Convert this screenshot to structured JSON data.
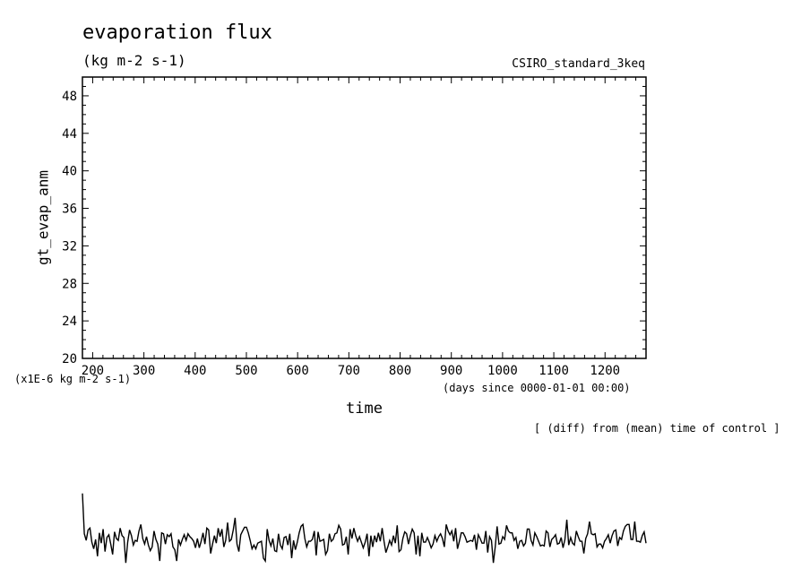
{
  "header": {
    "title": "evaporation flux",
    "units": "(kg m-2 s-1)",
    "dataset": "CSIRO_standard_3keq"
  },
  "footer": {
    "note": "[ (diff) from (mean) time of control ]"
  },
  "chart_data": {
    "type": "line",
    "xlabel": "time",
    "x_unit_label": "(days since 0000-01-01 00:00)",
    "ylabel": "gt_evap_anm",
    "y_scale_label": "(x1E-6 kg m-2 s-1)",
    "xlim": [
      180,
      1280
    ],
    "ylim": [
      20,
      50
    ],
    "x_ticks": [
      200,
      300,
      400,
      500,
      600,
      700,
      800,
      900,
      1000,
      1100,
      1200
    ],
    "y_ticks": [
      20,
      24,
      28,
      32,
      36,
      40,
      44,
      48
    ],
    "grid": false,
    "line_color": "#000000",
    "series": [
      {
        "values": [
          5.6,
          1.3,
          0.6,
          1.7,
          1.9,
          0.4,
          -0.3,
          0.7,
          -1.1,
          1.4,
          0.3,
          1.8,
          -0.6,
          0.9,
          1.2,
          0.2,
          -0.9,
          1.5,
          0.8,
          0.6,
          1.9,
          1.1,
          0.9,
          -1.8,
          0.4,
          1.7,
          1.1,
          0.1,
          0.6,
          0.5,
          1.6,
          2.3,
          0.8,
          0.2,
          1.0,
          0.1,
          -0.5,
          -0.1,
          1.6,
          0.7,
          0.2,
          -1.6,
          1.4,
          1.3,
          0.2,
          1.2,
          1.0,
          1.3,
          -0.1,
          -0.4,
          -1.6,
          0.7,
          0.1,
          0.7,
          1.2,
          0.6,
          1.3,
          1.0,
          0.8,
          0.5,
          -0.2,
          0.8,
          -0.2,
          0.5,
          1.4,
          0.2,
          1.9,
          1.7,
          -0.8,
          0.2,
          1.1,
          0.3,
          1.9,
          1.0,
          1.8,
          -0.1,
          0.6,
          2.5,
          0.5,
          0.7,
          1.7,
          3.0,
          0.2,
          -0.6,
          1.2,
          1.6,
          2.0,
          2.0,
          1.4,
          0.6,
          -0.3,
          0.1,
          -0.3,
          0.3,
          0.4,
          0.5,
          -1.3,
          -1.6,
          1.8,
          0.6,
          0.0,
          0.8,
          -0.5,
          -0.6,
          1.3,
          0.1,
          -0.3,
          0.9,
          1.0,
          0.1,
          1.3,
          -1.3,
          0.6,
          -0.4,
          0.4,
          1.4,
          2.1,
          2.3,
          0.8,
          -0.1,
          0.5,
          0.5,
          0.7,
          1.6,
          -1.0,
          1.5,
          0.5,
          0.6,
          0.7,
          -0.9,
          -0.5,
          1.3,
          0.5,
          0.7,
          1.3,
          1.4,
          2.2,
          1.8,
          0.1,
          0.2,
          1.0,
          -0.9,
          1.8,
          0.8,
          1.9,
          1.1,
          0.5,
          1.0,
          0.4,
          -0.2,
          0.4,
          1.3,
          -1.1,
          1.1,
          -0.1,
          1.1,
          0.4,
          1.4,
          0.5,
          1.9,
          0.5,
          -0.7,
          -0.1,
          0.6,
          0.1,
          1.1,
          0.3,
          2.2,
          -0.6,
          -0.4,
          0.8,
          1.5,
          1.3,
          0.2,
          1.1,
          1.8,
          1.4,
          -0.9,
          1.1,
          -1.1,
          1.4,
          0.4,
          0.4,
          0.9,
          0.4,
          -0.2,
          0.2,
          1.1,
          0.5,
          1.0,
          1.3,
          0.8,
          -0.1,
          2.3,
          1.6,
          1.2,
          1.6,
          0.5,
          1.9,
          -0.3,
          0.5,
          1.4,
          1.4,
          1.0,
          0.4,
          0.5,
          0.6,
          0.5,
          1.2,
          -0.4,
          1.2,
          0.8,
          0.3,
          0.3,
          1.6,
          -0.7,
          1.0,
          0.6,
          -1.8,
          -0.1,
          2.1,
          0.2,
          0.3,
          1.0,
          0.7,
          2.2,
          1.6,
          1.4,
          1.4,
          0.6,
          0.9,
          -0.3,
          0.5,
          0.6,
          0.0,
          0.3,
          1.8,
          1.8,
          0.6,
          0.1,
          1.4,
          1.0,
          0.5,
          0.0,
          0.1,
          0.0,
          1.6,
          1.4,
          -0.1,
          0.7,
          0.9,
          1.2,
          0.2,
          0.3,
          0.9,
          -0.2,
          0.7,
          2.8,
          0.1,
          0.9,
          0.3,
          0.1,
          1.6,
          1.0,
          0.5,
          0.5,
          -0.8,
          0.8,
          1.3,
          2.6,
          1.3,
          1.2,
          1.3,
          -0.1,
          0.2,
          0.2,
          -0.2,
          0.5,
          0.8,
          1.2,
          0.3,
          1.1,
          1.6,
          1.7,
          0.0,
          0.9,
          0.7,
          1.6,
          2.1,
          2.3,
          2.3,
          0.7,
          0.7,
          2.6,
          0.5,
          0.5,
          0.4,
          1.1,
          1.5,
          0.3
        ]
      }
    ]
  }
}
